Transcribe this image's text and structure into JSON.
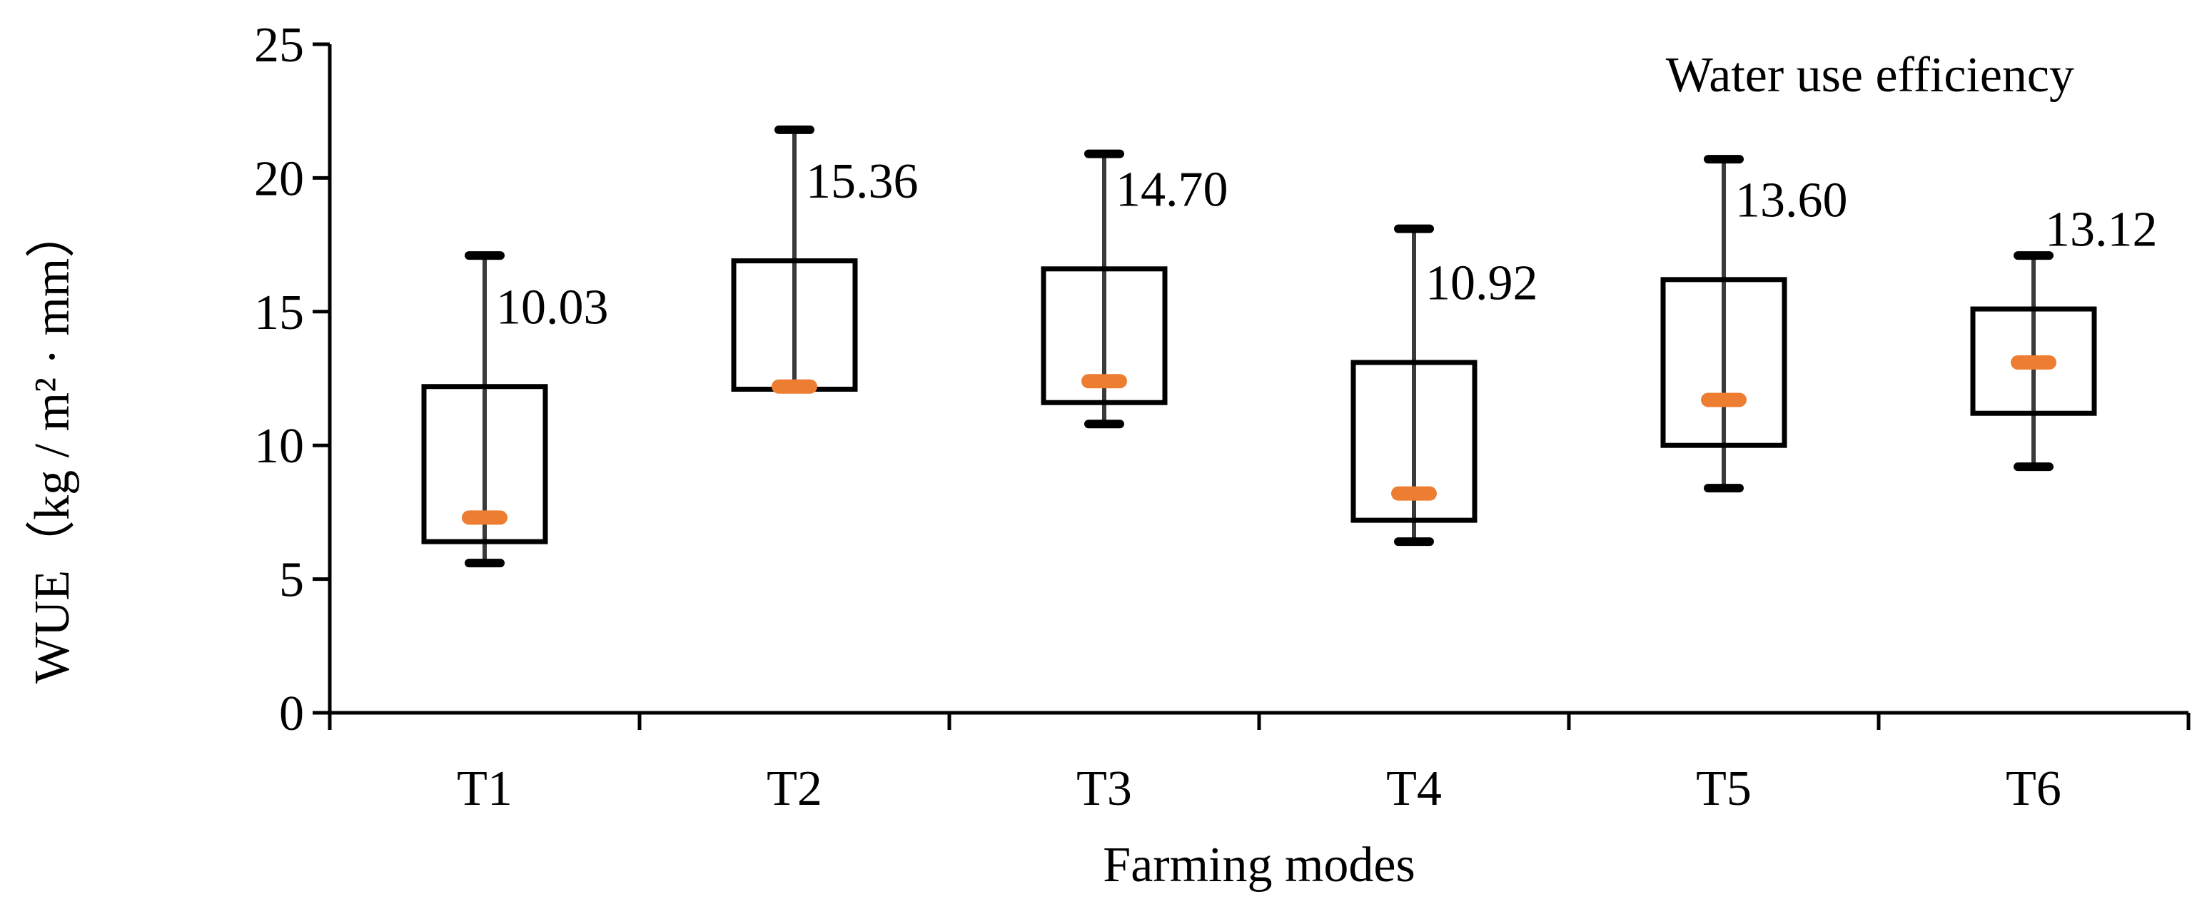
{
  "chart_data": {
    "type": "boxplot",
    "title": "Water use efficiency",
    "xlabel": "Farming modes",
    "ylabel": "WUE（kg / m² · mm）",
    "ylim": [
      0,
      25
    ],
    "yticks": [
      0,
      5,
      10,
      15,
      20,
      25
    ],
    "categories": [
      "T1",
      "T2",
      "T3",
      "T4",
      "T5",
      "T6"
    ],
    "boxes": [
      {
        "category": "T1",
        "min": 5.6,
        "q1": 6.4,
        "median": 7.3,
        "q3": 12.2,
        "max": 17.1,
        "mean_label": "10.03"
      },
      {
        "category": "T2",
        "min": 12.1,
        "q1": 12.1,
        "median": 12.2,
        "q3": 16.9,
        "max": 21.8,
        "mean_label": "15.36"
      },
      {
        "category": "T3",
        "min": 10.8,
        "q1": 11.6,
        "median": 12.4,
        "q3": 16.6,
        "max": 20.9,
        "mean_label": "14.70"
      },
      {
        "category": "T4",
        "min": 6.4,
        "q1": 7.2,
        "median": 8.2,
        "q3": 13.1,
        "max": 18.1,
        "mean_label": "10.92"
      },
      {
        "category": "T5",
        "min": 8.4,
        "q1": 10.0,
        "median": 11.7,
        "q3": 16.2,
        "max": 20.7,
        "mean_label": "13.60"
      },
      {
        "category": "T6",
        "min": 9.2,
        "q1": 11.2,
        "median": 13.1,
        "q3": 15.1,
        "max": 17.1,
        "mean_label": "13.12"
      }
    ],
    "colors": {
      "box": "#000000",
      "whisker": "#3a3a3a",
      "median": "#ED7D31",
      "axis": "#000000"
    },
    "legend": "none",
    "grid": false
  }
}
